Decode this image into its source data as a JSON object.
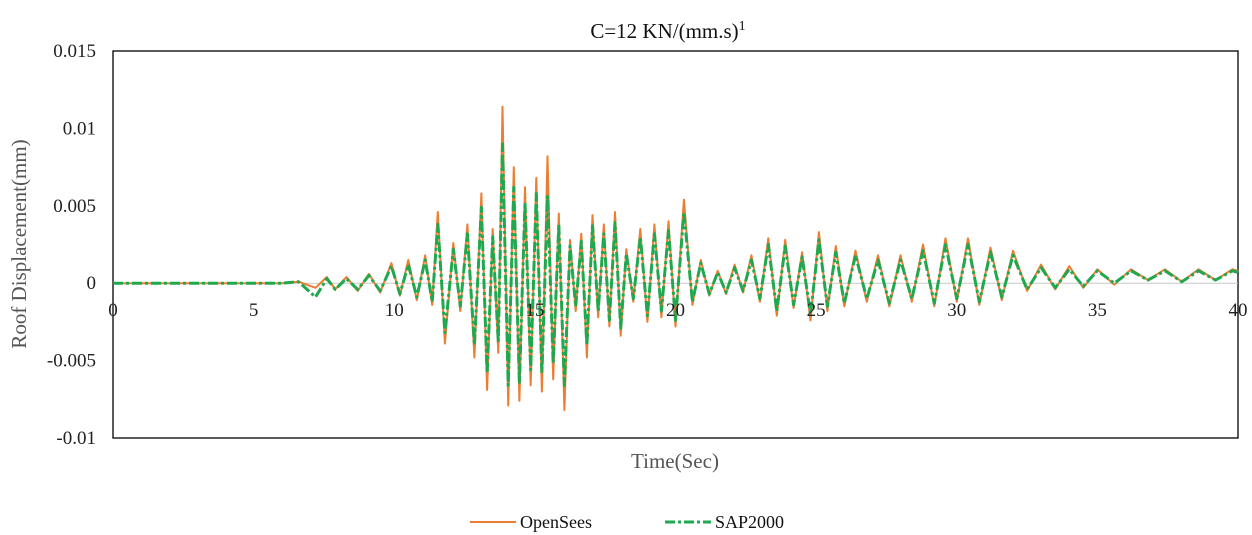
{
  "chart_data": {
    "type": "line",
    "title_main": "C=12 KN/(mm.s)",
    "title_sup": "1",
    "xlabel": "Time(Sec)",
    "ylabel": "Roof Displacement(mm)",
    "xlim": [
      0,
      40
    ],
    "ylim": [
      -0.01,
      0.015
    ],
    "x_ticks": [
      "0",
      "5",
      "10",
      "15",
      "20",
      "25",
      "30",
      "35",
      "40"
    ],
    "y_ticks": [
      "0.015",
      "0.01",
      "0.005",
      "0",
      "-0.005",
      "-0.01"
    ],
    "grid": false,
    "legend_position": "bottom",
    "series": [
      {
        "name": "OpenSees",
        "color": "#ED7D31",
        "x": [
          0,
          5,
          6,
          6.6,
          7.2,
          7.6,
          7.9,
          8.3,
          8.7,
          9.1,
          9.5,
          9.9,
          10.2,
          10.5,
          10.8,
          11.1,
          11.35,
          11.55,
          11.8,
          12.1,
          12.35,
          12.6,
          12.85,
          13.1,
          13.3,
          13.5,
          13.7,
          13.85,
          14.05,
          14.25,
          14.45,
          14.65,
          14.85,
          15.05,
          15.25,
          15.45,
          15.65,
          15.85,
          16.05,
          16.25,
          16.45,
          16.65,
          16.85,
          17.05,
          17.25,
          17.45,
          17.65,
          17.85,
          18.05,
          18.25,
          18.5,
          18.75,
          19.0,
          19.25,
          19.5,
          19.75,
          20.0,
          20.3,
          20.6,
          20.9,
          21.2,
          21.5,
          21.8,
          22.1,
          22.4,
          22.7,
          23.0,
          23.3,
          23.6,
          23.9,
          24.2,
          24.5,
          24.8,
          25.1,
          25.4,
          25.7,
          26.0,
          26.4,
          26.8,
          27.2,
          27.6,
          28.0,
          28.4,
          28.8,
          29.2,
          29.6,
          30.0,
          30.4,
          30.8,
          31.2,
          31.6,
          32.0,
          32.5,
          33.0,
          33.5,
          34.0,
          34.5,
          35.0,
          35.6,
          36.2,
          36.8,
          37.4,
          38.0,
          38.6,
          39.2,
          39.8,
          40
        ],
        "values": [
          0,
          0,
          0,
          0.0001,
          -0.0003,
          0.0004,
          -0.0004,
          0.0004,
          -0.0005,
          0.0006,
          -0.0006,
          0.0013,
          -0.0008,
          0.0015,
          -0.0011,
          0.0018,
          -0.0014,
          0.0046,
          -0.0039,
          0.0026,
          -0.0018,
          0.0038,
          -0.0048,
          0.0058,
          -0.0069,
          0.0035,
          -0.0045,
          0.0114,
          -0.0079,
          0.0075,
          -0.0076,
          0.0062,
          -0.0066,
          0.0068,
          -0.007,
          0.0082,
          -0.0062,
          0.0045,
          -0.0082,
          0.0028,
          -0.0018,
          0.0032,
          -0.0048,
          0.0044,
          -0.0022,
          0.0038,
          -0.0028,
          0.0046,
          -0.0034,
          0.0022,
          -0.0012,
          0.0035,
          -0.0025,
          0.0038,
          -0.0022,
          0.004,
          -0.0028,
          0.0054,
          -0.0014,
          0.0015,
          -0.0008,
          0.0008,
          -0.0007,
          0.0012,
          -0.0006,
          0.0018,
          -0.0012,
          0.0029,
          -0.0021,
          0.0028,
          -0.0016,
          0.002,
          -0.0024,
          0.0033,
          -0.0018,
          0.0024,
          -0.0015,
          0.0021,
          -0.0012,
          0.0018,
          -0.0015,
          0.0018,
          -0.0012,
          0.0025,
          -0.0015,
          0.0029,
          -0.0012,
          0.0029,
          -0.0014,
          0.0023,
          -0.0011,
          0.0021,
          -0.0005,
          0.0012,
          -0.0004,
          0.0011,
          -0.0003,
          0.0009,
          -0.0001,
          0.0009,
          0.0002,
          0.0009,
          0.0001,
          0.0009,
          0.0002,
          0.0009,
          0.0008
        ]
      },
      {
        "name": "SAP2000",
        "color": "#1FA84F",
        "x": [
          0,
          5,
          6,
          6.6,
          7.2,
          7.6,
          7.9,
          8.3,
          8.7,
          9.1,
          9.5,
          9.9,
          10.2,
          10.5,
          10.8,
          11.1,
          11.35,
          11.55,
          11.8,
          12.1,
          12.35,
          12.6,
          12.85,
          13.1,
          13.3,
          13.5,
          13.7,
          13.85,
          14.05,
          14.25,
          14.45,
          14.65,
          14.85,
          15.05,
          15.25,
          15.45,
          15.65,
          15.85,
          16.05,
          16.25,
          16.45,
          16.65,
          16.85,
          17.05,
          17.25,
          17.45,
          17.65,
          17.85,
          18.05,
          18.25,
          18.5,
          18.75,
          19.0,
          19.25,
          19.5,
          19.75,
          20.0,
          20.3,
          20.6,
          20.9,
          21.2,
          21.5,
          21.8,
          22.1,
          22.4,
          22.7,
          23.0,
          23.3,
          23.6,
          23.9,
          24.2,
          24.5,
          24.8,
          25.1,
          25.4,
          25.7,
          26.0,
          26.4,
          26.8,
          27.2,
          27.6,
          28.0,
          28.4,
          28.8,
          29.2,
          29.6,
          30.0,
          30.4,
          30.8,
          31.2,
          31.6,
          32.0,
          32.5,
          33.0,
          33.5,
          34.0,
          34.5,
          35.0,
          35.6,
          36.2,
          36.8,
          37.4,
          38.0,
          38.6,
          39.2,
          39.8,
          40
        ],
        "values": [
          0,
          0,
          0,
          0.0001,
          -0.0009,
          0.0003,
          -0.0004,
          0.0003,
          -0.0004,
          0.0005,
          -0.0005,
          0.0011,
          -0.0007,
          0.0012,
          -0.0009,
          0.0015,
          -0.0012,
          0.0038,
          -0.0032,
          0.0022,
          -0.0015,
          0.0032,
          -0.004,
          0.0049,
          -0.0058,
          0.003,
          -0.0038,
          0.009,
          -0.0066,
          0.0062,
          -0.0064,
          0.0052,
          -0.0056,
          0.0058,
          -0.0058,
          0.0056,
          -0.0052,
          0.0038,
          -0.0066,
          0.0024,
          -0.0015,
          0.0027,
          -0.004,
          0.0037,
          -0.0018,
          0.0032,
          -0.0024,
          0.0039,
          -0.0029,
          0.0019,
          -0.001,
          0.003,
          -0.0021,
          0.0032,
          -0.0018,
          0.0034,
          -0.0024,
          0.0046,
          -0.0012,
          0.0013,
          -0.0007,
          0.0007,
          -0.0006,
          0.001,
          -0.0005,
          0.0015,
          -0.001,
          0.0025,
          -0.0018,
          0.0024,
          -0.0014,
          0.0017,
          -0.002,
          0.0028,
          -0.0015,
          0.002,
          -0.0013,
          0.0018,
          -0.001,
          0.0015,
          -0.0013,
          0.0015,
          -0.001,
          0.0021,
          -0.0013,
          0.0025,
          -0.001,
          0.0025,
          -0.0012,
          0.002,
          -0.0009,
          0.0018,
          -0.0004,
          0.001,
          -0.0003,
          0.0009,
          -0.0002,
          0.0008,
          0,
          0.0008,
          0.0002,
          0.0008,
          0.0001,
          0.0008,
          0.0002,
          0.0008,
          0.0007
        ]
      }
    ]
  }
}
